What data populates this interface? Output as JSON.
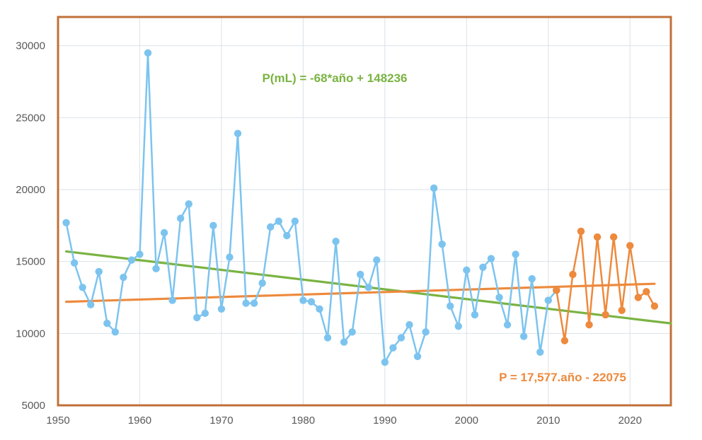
{
  "chart_data": {
    "type": "line",
    "title": "",
    "xlabel": "",
    "ylabel": "",
    "xlim": [
      1950,
      2025
    ],
    "ylim": [
      5000,
      32000
    ],
    "x_ticks": [
      1950,
      1960,
      1970,
      1980,
      1990,
      2000,
      2010,
      2020
    ],
    "y_ticks": [
      5000,
      10000,
      15000,
      20000,
      25000,
      30000
    ],
    "grid": true,
    "legend": "none",
    "colors": {
      "historical": "#7cc4ef",
      "recent": "#ed8a3d",
      "trend_green": "#7ab342",
      "trend_orange": "#ed8a3d",
      "frame": "#c0703a",
      "grid": "#d9e2ea"
    },
    "series": [
      {
        "name": "historical",
        "x": [
          1951,
          1952,
          1953,
          1954,
          1955,
          1956,
          1957,
          1958,
          1959,
          1960,
          1961,
          1962,
          1963,
          1964,
          1965,
          1966,
          1967,
          1968,
          1969,
          1970,
          1971,
          1972,
          1973,
          1974,
          1975,
          1976,
          1977,
          1978,
          1979,
          1980,
          1981,
          1982,
          1983,
          1984,
          1985,
          1986,
          1987,
          1988,
          1989,
          1990,
          1991,
          1992,
          1993,
          1994,
          1995,
          1996,
          1997,
          1998,
          1999,
          2000,
          2001,
          2002,
          2003,
          2004,
          2005,
          2006,
          2007,
          2008,
          2009,
          2010,
          2011
        ],
        "values": [
          17700,
          14900,
          13200,
          12000,
          14300,
          10700,
          10100,
          13900,
          15100,
          15500,
          29500,
          14500,
          17000,
          12300,
          18000,
          19000,
          11100,
          11400,
          17500,
          11700,
          15300,
          23900,
          12100,
          12100,
          13500,
          17400,
          17800,
          16800,
          17800,
          12300,
          12200,
          11700,
          9700,
          16400,
          9400,
          10100,
          14100,
          13200,
          15100,
          8000,
          9000,
          9700,
          10600,
          8400,
          10100,
          20100,
          16200,
          11900,
          10500,
          14400,
          11300,
          14600,
          15200,
          12500,
          10600,
          15500,
          9800,
          13800,
          8700,
          12300,
          13000
        ]
      },
      {
        "name": "recent",
        "x": [
          2011,
          2012,
          2013,
          2014,
          2015,
          2016,
          2017,
          2018,
          2019,
          2020,
          2021,
          2022,
          2023
        ],
        "values": [
          13000,
          9500,
          14100,
          17100,
          10600,
          16700,
          11300,
          16700,
          11600,
          16100,
          12500,
          12900,
          11900
        ]
      }
    ],
    "trendlines": [
      {
        "name": "trend_green",
        "label": "P(mL) = -68*año + 148236",
        "x": [
          1951,
          2025
        ],
        "values": [
          15700,
          10700
        ]
      },
      {
        "name": "trend_orange",
        "label": "P = 17,577.año - 22075",
        "x": [
          1951,
          2023
        ],
        "values": [
          12200,
          13450
        ]
      }
    ]
  }
}
